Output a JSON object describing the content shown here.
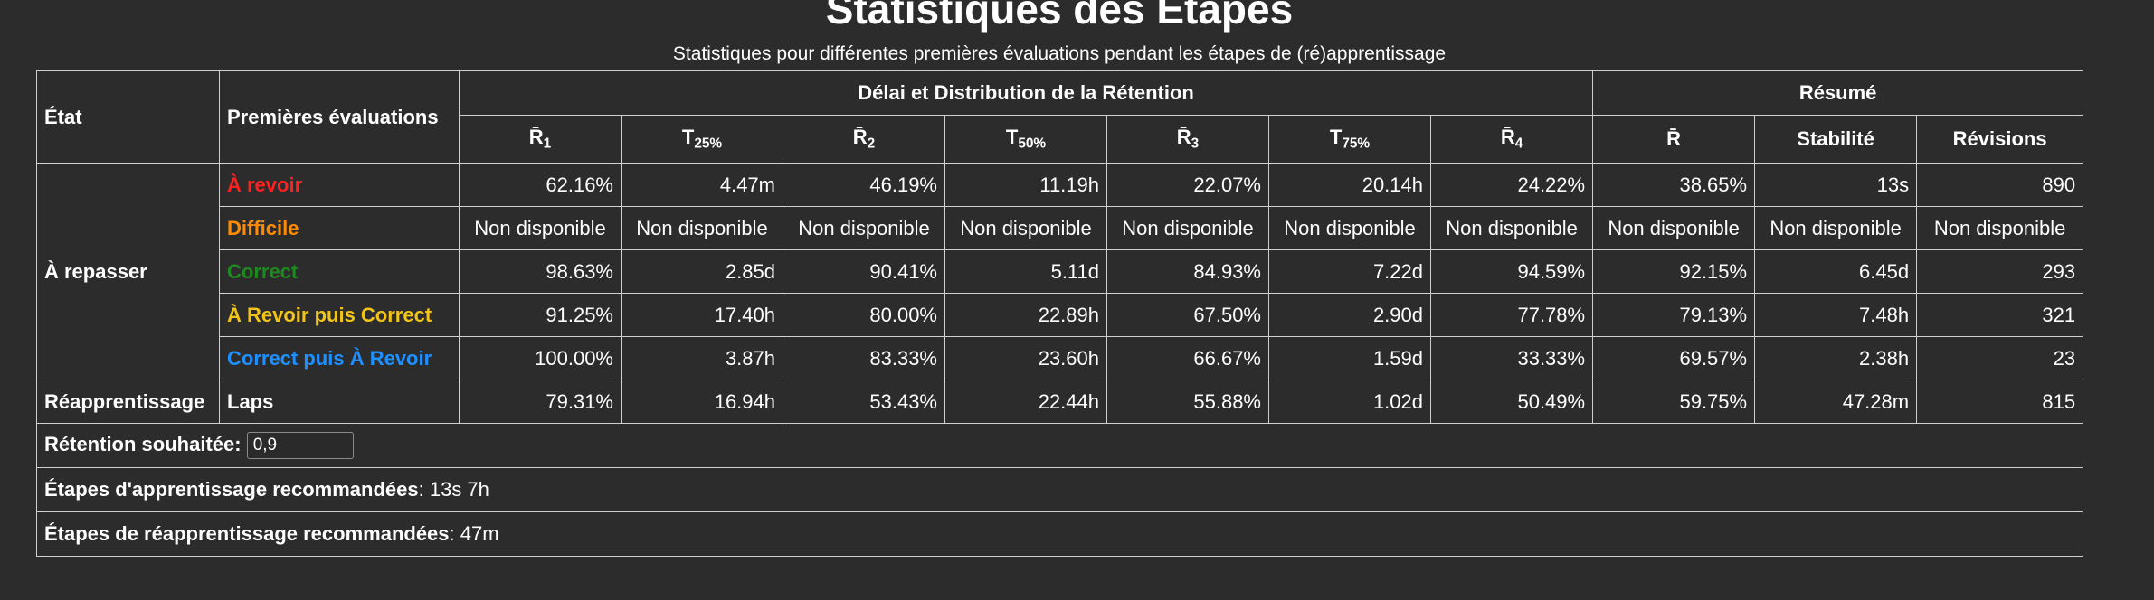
{
  "title": "Statistiques des Étapes",
  "subtitle": "Statistiques pour différentes premières évaluations pendant les étapes de (ré)apprentissage",
  "table": {
    "headers": {
      "state": "État",
      "first_ratings": "Premières évaluations",
      "group_delay": "Délai et Distribution de la Rétention",
      "group_summary": "Résumé",
      "r1_base": "R̄",
      "r1_sub": "1",
      "t25_base": "T",
      "t25_sub": "25%",
      "r2_base": "R̄",
      "r2_sub": "2",
      "t50_base": "T",
      "t50_sub": "50%",
      "r3_base": "R̄",
      "r3_sub": "3",
      "t75_base": "T",
      "t75_sub": "75%",
      "r4_base": "R̄",
      "r4_sub": "4",
      "r": "R̄",
      "stability": "Stabilité",
      "reviews": "Révisions"
    },
    "groups": [
      {
        "state": "À repasser",
        "rows": [
          {
            "rating": "À revoir",
            "color": "#ff2020",
            "values": [
              "62.16%",
              "4.47m",
              "46.19%",
              "11.19h",
              "22.07%",
              "20.14h",
              "24.22%",
              "38.65%",
              "13s",
              "890"
            ]
          },
          {
            "rating": "Difficile",
            "color": "#ff8c00",
            "na": true,
            "values": [
              "Non disponible",
              "Non disponible",
              "Non disponible",
              "Non disponible",
              "Non disponible",
              "Non disponible",
              "Non disponible",
              "Non disponible",
              "Non disponible",
              "Non disponible"
            ]
          },
          {
            "rating": "Correct",
            "color": "#1f8a1f",
            "values": [
              "98.63%",
              "2.85d",
              "90.41%",
              "5.11d",
              "84.93%",
              "7.22d",
              "94.59%",
              "92.15%",
              "6.45d",
              "293"
            ]
          },
          {
            "rating": "À Revoir puis Correct",
            "color": "#f0c419",
            "values": [
              "91.25%",
              "17.40h",
              "80.00%",
              "22.89h",
              "67.50%",
              "2.90d",
              "77.78%",
              "79.13%",
              "7.48h",
              "321"
            ]
          },
          {
            "rating": "Correct puis À Revoir",
            "color": "#1e90ff",
            "values": [
              "100.00%",
              "3.87h",
              "83.33%",
              "23.60h",
              "66.67%",
              "1.59d",
              "33.33%",
              "69.57%",
              "2.38h",
              "23"
            ]
          }
        ]
      },
      {
        "state": "Réapprentissage",
        "rows": [
          {
            "rating": "Laps",
            "color": "#ffffff",
            "values": [
              "79.31%",
              "16.94h",
              "53.43%",
              "22.44h",
              "55.88%",
              "1.02d",
              "50.49%",
              "59.75%",
              "47.28m",
              "815"
            ]
          }
        ]
      }
    ]
  },
  "desired_retention": {
    "label": "Rétention souhaitée:",
    "value": "0,9"
  },
  "learning_steps": {
    "label": "Étapes d'apprentissage recommandées",
    "value": ": 13s 7h"
  },
  "relearning_steps": {
    "label": "Étapes de réapprentissage recommandées",
    "value": ": 47m"
  }
}
